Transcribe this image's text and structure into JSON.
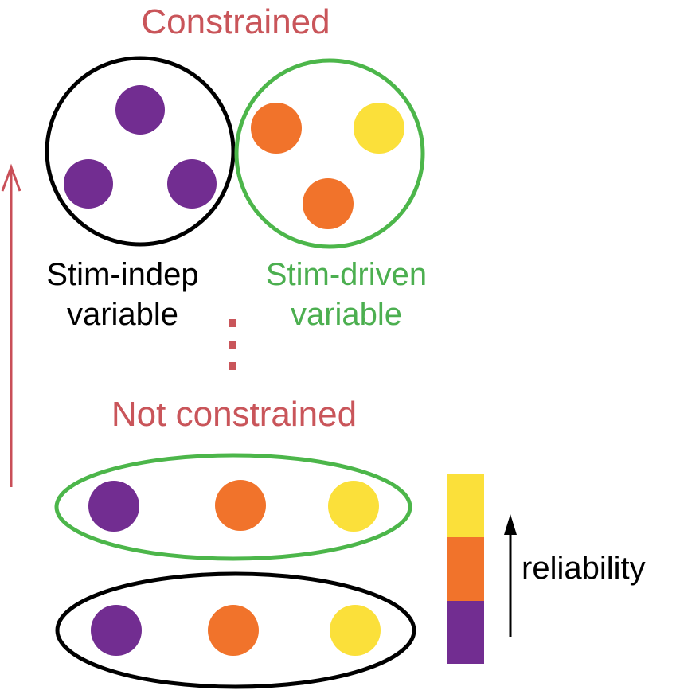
{
  "labels": {
    "constrained": "Constrained",
    "not_constrained": "Not constrained",
    "stim_indep_line1": "Stim-indep",
    "stim_indep_line2": "variable",
    "stim_driven_line1": "Stim-driven",
    "stim_driven_line2": "variable",
    "reliability": "reliability"
  },
  "colors": {
    "purple": "#722d91",
    "orange": "#f1732b",
    "yellow": "#fbe03a",
    "green": "#4cb64a",
    "black": "#000000",
    "red_text": "#c9555a",
    "red_arrow": "#c94f58",
    "green_text": "#4caf50"
  },
  "groups": {
    "stim_indep_constrained": [
      "purple",
      "purple",
      "purple"
    ],
    "stim_driven_constrained": [
      "orange",
      "yellow",
      "orange"
    ],
    "stim_driven_not_constrained": [
      "purple",
      "orange",
      "yellow"
    ],
    "stim_indep_not_constrained": [
      "purple",
      "orange",
      "yellow"
    ]
  },
  "reliability_scale": [
    "yellow",
    "orange",
    "purple"
  ]
}
